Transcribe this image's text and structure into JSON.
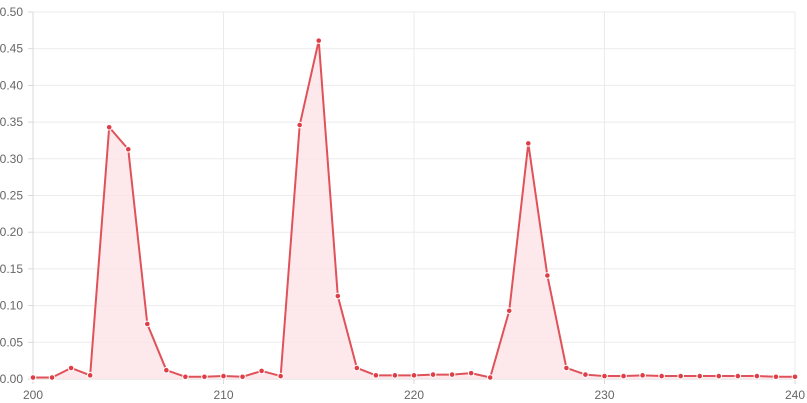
{
  "chart_data": {
    "type": "area",
    "title": "",
    "xlabel": "",
    "ylabel": "",
    "xlim": [
      200,
      240
    ],
    "ylim": [
      0,
      0.5
    ],
    "x_ticks": [
      "200",
      "210",
      "220",
      "230",
      "240"
    ],
    "y_ticks": [
      "0.00",
      "0.05",
      "0.10",
      "0.15",
      "0.20",
      "0.25",
      "0.30",
      "0.35",
      "0.40",
      "0.45",
      "0.50"
    ],
    "grid": true,
    "legend": "none",
    "colors": {
      "line": "#e05259",
      "fill": "#fce4e6",
      "point": "#e03e46"
    },
    "series": [
      {
        "x": [
          200,
          201,
          202,
          203,
          204,
          205,
          206,
          207,
          208,
          209,
          210,
          211,
          212,
          213,
          214,
          215,
          216,
          217,
          218,
          219,
          220,
          221,
          222,
          223,
          224,
          225,
          226,
          227,
          228,
          229,
          230,
          231,
          232,
          233,
          234,
          235,
          236,
          237,
          238,
          239,
          240
        ],
        "values": [
          0.002,
          0.002,
          0.015,
          0.005,
          0.343,
          0.313,
          0.075,
          0.012,
          0.003,
          0.003,
          0.004,
          0.003,
          0.011,
          0.004,
          0.346,
          0.461,
          0.113,
          0.015,
          0.005,
          0.005,
          0.005,
          0.006,
          0.006,
          0.008,
          0.002,
          0.093,
          0.321,
          0.141,
          0.015,
          0.006,
          0.004,
          0.004,
          0.005,
          0.004,
          0.004,
          0.004,
          0.004,
          0.004,
          0.004,
          0.003,
          0.003
        ]
      }
    ]
  }
}
